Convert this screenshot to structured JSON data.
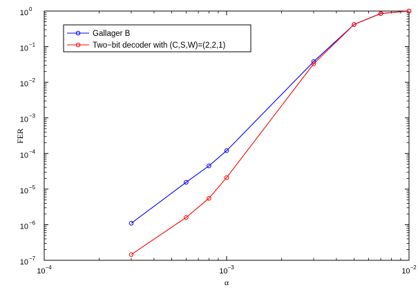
{
  "chart_data": {
    "type": "line",
    "xscale": "log",
    "yscale": "log",
    "xlim": [
      0.0001,
      0.01
    ],
    "ylim": [
      1e-07,
      1
    ],
    "xlabel": "α",
    "ylabel": "FER",
    "grid": false,
    "legend_position": "top-left",
    "x_ticks": [
      {
        "base": "10",
        "exp": "−4",
        "value": 0.0001
      },
      {
        "base": "10",
        "exp": "−3",
        "value": 0.001
      },
      {
        "base": "10",
        "exp": "−2",
        "value": 0.01
      }
    ],
    "y_ticks": [
      {
        "base": "10",
        "exp": "−7",
        "value": 1e-07
      },
      {
        "base": "10",
        "exp": "−6",
        "value": 1e-06
      },
      {
        "base": "10",
        "exp": "−5",
        "value": 1e-05
      },
      {
        "base": "10",
        "exp": "−4",
        "value": 0.0001
      },
      {
        "base": "10",
        "exp": "−3",
        "value": 0.001
      },
      {
        "base": "10",
        "exp": "−2",
        "value": 0.01
      },
      {
        "base": "10",
        "exp": "−1",
        "value": 0.1
      },
      {
        "base": "10",
        "exp": "0",
        "value": 1
      }
    ],
    "series": [
      {
        "name": "Gallager B",
        "color": "#0000ff",
        "marker": "circle",
        "x": [
          0.0003,
          0.0006,
          0.0008,
          0.001,
          0.003,
          0.005,
          0.007,
          0.01
        ],
        "y": [
          1.1e-06,
          1.55e-05,
          4.5e-05,
          0.00012,
          0.038,
          0.42,
          0.85,
          1.0
        ]
      },
      {
        "name": "Two−bit decoder with (C,S,W)=(2,2,1)",
        "color": "#ff0000",
        "marker": "circle",
        "x": [
          0.0003,
          0.0006,
          0.0008,
          0.001,
          0.003,
          0.005,
          0.007,
          0.01
        ],
        "y": [
          1.45e-07,
          1.6e-06,
          5.5e-06,
          2.1e-05,
          0.033,
          0.42,
          0.85,
          1.0
        ]
      }
    ]
  }
}
